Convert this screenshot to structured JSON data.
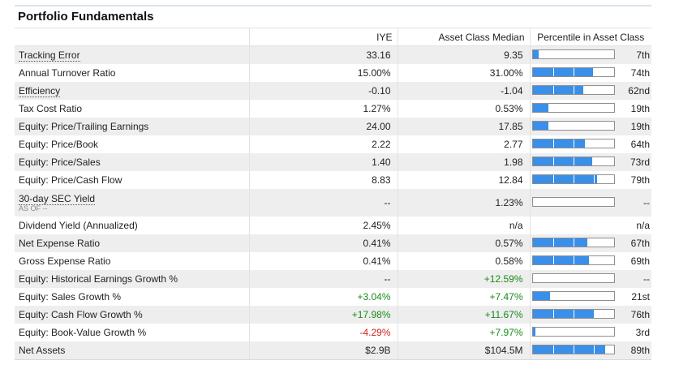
{
  "title": "Portfolio Fundamentals",
  "headers": {
    "name": "",
    "iye": "IYE",
    "median": "Asset Class Median",
    "percentile": "Percentile in Asset Class"
  },
  "rows": [
    {
      "label": "Tracking Error",
      "underlined": true,
      "iye": "33.16",
      "median": "9.35",
      "pct": 0.07,
      "rank": "7th"
    },
    {
      "label": "Annual Turnover Ratio",
      "iye": "15.00%",
      "median": "31.00%",
      "pct": 0.74,
      "rank": "74th"
    },
    {
      "label": "Efficiency",
      "underlined": true,
      "iye": "-0.10",
      "median": "-1.04",
      "pct": 0.62,
      "rank": "62nd"
    },
    {
      "label": "Tax Cost Ratio",
      "iye": "1.27%",
      "median": "0.53%",
      "pct": 0.19,
      "rank": "19th"
    },
    {
      "label": "Equity: Price/Trailing Earnings",
      "iye": "24.00",
      "median": "17.85",
      "pct": 0.19,
      "rank": "19th"
    },
    {
      "label": "Equity: Price/Book",
      "iye": "2.22",
      "median": "2.77",
      "pct": 0.64,
      "rank": "64th"
    },
    {
      "label": "Equity: Price/Sales",
      "iye": "1.40",
      "median": "1.98",
      "pct": 0.73,
      "rank": "73rd"
    },
    {
      "label": "Equity: Price/Cash Flow",
      "iye": "8.83",
      "median": "12.84",
      "pct": 0.79,
      "rank": "79th"
    },
    {
      "label": "30-day SEC Yield",
      "underlined": true,
      "asof": "AS OF --",
      "iye": "--",
      "median": "1.23%",
      "pct": 0,
      "rank": "--"
    },
    {
      "label": "Dividend Yield (Annualized)",
      "iye": "2.45%",
      "median": "n/a",
      "pct": null,
      "rank": "n/a"
    },
    {
      "label": "Net Expense Ratio",
      "iye": "0.41%",
      "median": "0.57%",
      "pct": 0.67,
      "rank": "67th"
    },
    {
      "label": "Gross Expense Ratio",
      "iye": "0.41%",
      "median": "0.58%",
      "pct": 0.69,
      "rank": "69th"
    },
    {
      "label": "Equity: Historical Earnings Growth %",
      "iye": "--",
      "iye_color": "",
      "median": "+12.59%",
      "median_color": "pos",
      "pct": 0,
      "rank": "--"
    },
    {
      "label": "Equity: Sales Growth %",
      "iye": "+3.04%",
      "iye_color": "pos",
      "median": "+7.47%",
      "median_color": "pos",
      "pct": 0.21,
      "rank": "21st"
    },
    {
      "label": "Equity: Cash Flow Growth %",
      "iye": "+17.98%",
      "iye_color": "pos",
      "median": "+11.67%",
      "median_color": "pos",
      "pct": 0.76,
      "rank": "76th"
    },
    {
      "label": "Equity: Book-Value Growth %",
      "iye": "-4.29%",
      "iye_color": "neg",
      "median": "+7.97%",
      "median_color": "pos",
      "pct": 0.03,
      "rank": "3rd"
    },
    {
      "label": "Net Assets",
      "iye": "$2.9B",
      "median": "$104.5M",
      "pct": 0.89,
      "rank": "89th"
    }
  ],
  "colors": {
    "bar_fill": "#3a8fe8",
    "positive": "#1a8a1a",
    "negative": "#d32020",
    "row_alt": "#eeeeee"
  }
}
